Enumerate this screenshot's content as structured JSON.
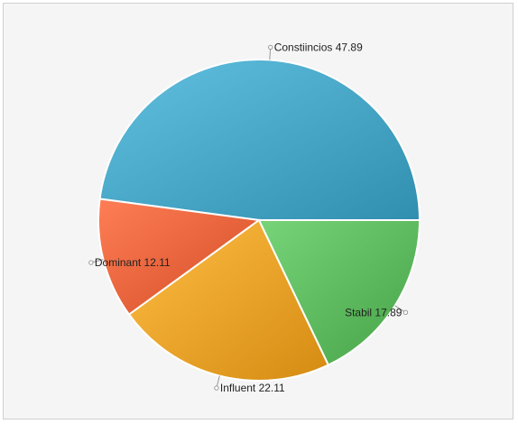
{
  "chart_data": {
    "type": "pie",
    "title": "",
    "slices": [
      {
        "name": "Constiincios",
        "value": 47.89,
        "label": "Constiincios 47.89",
        "color": "#46a4c4"
      },
      {
        "name": "Dominant",
        "value": 12.11,
        "label": "Dominant 12.11",
        "color": "#e8623a"
      },
      {
        "name": "Influent",
        "value": 22.11,
        "label": "Influent 22.11",
        "color": "#eba128"
      },
      {
        "name": "Stabil",
        "value": 17.89,
        "label": "Stabil 17.89",
        "color": "#5cb85c"
      }
    ],
    "legend": "none",
    "data_labels": "outside-with-leaders"
  }
}
